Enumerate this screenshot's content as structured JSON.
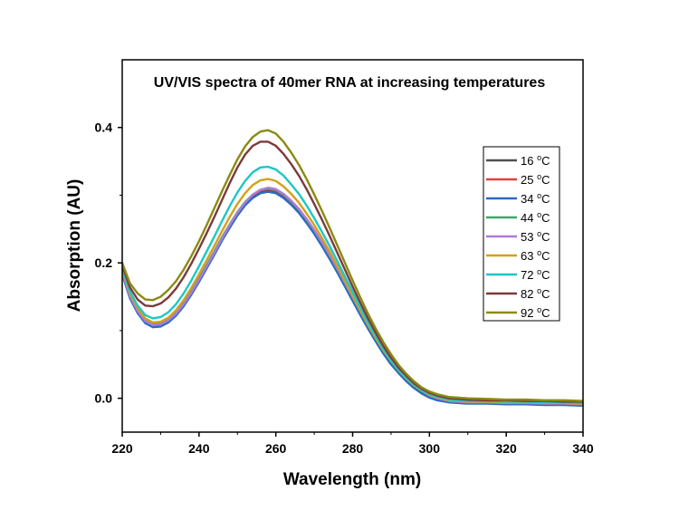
{
  "chart_data": {
    "type": "line",
    "title": "UV/VIS spectra of 40mer RNA at increasing temperatures",
    "xlabel": "Wavelength (nm)",
    "ylabel": "Absorption (AU)",
    "xlim": [
      220,
      340
    ],
    "ylim": [
      -0.05,
      0.5
    ],
    "xticks": [
      220,
      240,
      260,
      280,
      300,
      320,
      340
    ],
    "xtick_labels": [
      "220",
      "240",
      "260",
      "280",
      "300",
      "320",
      "340"
    ],
    "yticks": [
      0.0,
      0.2,
      0.4
    ],
    "ytick_labels": [
      "0.0",
      "0.2",
      "0.4"
    ],
    "legend_position": "right",
    "x": [
      220,
      222,
      224,
      226,
      228,
      230,
      232,
      234,
      236,
      238,
      240,
      242,
      244,
      246,
      248,
      250,
      252,
      254,
      256,
      258,
      260,
      262,
      264,
      266,
      268,
      270,
      272,
      274,
      276,
      278,
      280,
      282,
      284,
      286,
      288,
      290,
      292,
      294,
      296,
      298,
      300,
      302,
      305,
      310,
      315,
      320,
      325,
      330,
      335,
      340
    ],
    "series": [
      {
        "name": "16 °C",
        "label_main": "16 ",
        "label_sup": "o",
        "label_unit": "C",
        "color": "#505050",
        "values": [
          0.185,
          0.15,
          0.128,
          0.113,
          0.107,
          0.108,
          0.114,
          0.124,
          0.138,
          0.155,
          0.174,
          0.194,
          0.214,
          0.235,
          0.254,
          0.272,
          0.287,
          0.298,
          0.305,
          0.307,
          0.305,
          0.298,
          0.288,
          0.276,
          0.261,
          0.245,
          0.227,
          0.208,
          0.188,
          0.167,
          0.146,
          0.125,
          0.105,
          0.086,
          0.068,
          0.052,
          0.039,
          0.027,
          0.017,
          0.009,
          0.003,
          -0.001,
          -0.004,
          -0.006,
          -0.006,
          -0.006,
          -0.007,
          -0.007,
          -0.008,
          -0.008
        ]
      },
      {
        "name": "25 °C",
        "label_main": "25 ",
        "label_sup": "o",
        "label_unit": "C",
        "color": "#e04040",
        "values": [
          0.187,
          0.152,
          0.13,
          0.115,
          0.109,
          0.11,
          0.116,
          0.126,
          0.14,
          0.157,
          0.176,
          0.196,
          0.216,
          0.237,
          0.256,
          0.274,
          0.289,
          0.3,
          0.307,
          0.309,
          0.307,
          0.3,
          0.29,
          0.278,
          0.263,
          0.247,
          0.229,
          0.21,
          0.19,
          0.169,
          0.148,
          0.127,
          0.107,
          0.088,
          0.07,
          0.054,
          0.041,
          0.029,
          0.019,
          0.011,
          0.005,
          0.001,
          -0.003,
          -0.005,
          -0.005,
          -0.006,
          -0.006,
          -0.007,
          -0.007,
          -0.008
        ]
      },
      {
        "name": "34 °C",
        "label_main": "34 ",
        "label_sup": "o",
        "label_unit": "C",
        "color": "#2a6bc1",
        "values": [
          0.183,
          0.148,
          0.126,
          0.111,
          0.105,
          0.106,
          0.112,
          0.122,
          0.136,
          0.153,
          0.172,
          0.192,
          0.212,
          0.233,
          0.252,
          0.27,
          0.285,
          0.296,
          0.303,
          0.305,
          0.303,
          0.296,
          0.286,
          0.274,
          0.259,
          0.243,
          0.225,
          0.206,
          0.186,
          0.165,
          0.144,
          0.123,
          0.103,
          0.084,
          0.066,
          0.05,
          0.037,
          0.025,
          0.015,
          0.007,
          0.001,
          -0.003,
          -0.006,
          -0.008,
          -0.008,
          -0.009,
          -0.009,
          -0.01,
          -0.01,
          -0.011
        ]
      },
      {
        "name": "44 °C",
        "label_main": "44 ",
        "label_sup": "o",
        "label_unit": "C",
        "color": "#3aaa6a",
        "values": [
          0.188,
          0.153,
          0.131,
          0.116,
          0.11,
          0.111,
          0.117,
          0.127,
          0.141,
          0.158,
          0.177,
          0.197,
          0.217,
          0.238,
          0.257,
          0.275,
          0.29,
          0.301,
          0.308,
          0.31,
          0.308,
          0.301,
          0.291,
          0.279,
          0.264,
          0.248,
          0.23,
          0.211,
          0.191,
          0.17,
          0.149,
          0.128,
          0.108,
          0.089,
          0.071,
          0.055,
          0.042,
          0.03,
          0.02,
          0.012,
          0.006,
          0.002,
          -0.002,
          -0.004,
          -0.005,
          -0.005,
          -0.006,
          -0.006,
          -0.007,
          -0.007
        ]
      },
      {
        "name": "53 °C",
        "label_main": "53 ",
        "label_sup": "o",
        "label_unit": "C",
        "color": "#b07ad6",
        "values": [
          0.186,
          0.151,
          0.129,
          0.114,
          0.108,
          0.109,
          0.115,
          0.125,
          0.139,
          0.156,
          0.175,
          0.195,
          0.215,
          0.236,
          0.256,
          0.274,
          0.289,
          0.301,
          0.308,
          0.311,
          0.309,
          0.302,
          0.292,
          0.28,
          0.265,
          0.249,
          0.231,
          0.212,
          0.192,
          0.171,
          0.15,
          0.129,
          0.108,
          0.089,
          0.071,
          0.055,
          0.041,
          0.029,
          0.019,
          0.011,
          0.004,
          0.0,
          -0.004,
          -0.006,
          -0.006,
          -0.007,
          -0.007,
          -0.008,
          -0.008,
          -0.009
        ]
      },
      {
        "name": "63 °C",
        "label_main": "63 ",
        "label_sup": "o",
        "label_unit": "C",
        "color": "#d4a017",
        "values": [
          0.19,
          0.155,
          0.133,
          0.118,
          0.112,
          0.113,
          0.119,
          0.13,
          0.145,
          0.163,
          0.183,
          0.204,
          0.225,
          0.247,
          0.268,
          0.287,
          0.303,
          0.315,
          0.322,
          0.324,
          0.321,
          0.313,
          0.302,
          0.289,
          0.273,
          0.256,
          0.237,
          0.217,
          0.196,
          0.174,
          0.152,
          0.13,
          0.109,
          0.089,
          0.071,
          0.055,
          0.041,
          0.029,
          0.019,
          0.011,
          0.005,
          0.001,
          -0.003,
          -0.005,
          -0.005,
          -0.006,
          -0.006,
          -0.007,
          -0.007,
          -0.008
        ]
      },
      {
        "name": "72 °C",
        "label_main": "72 ",
        "label_sup": "o",
        "label_unit": "C",
        "color": "#1cc7c7",
        "values": [
          0.192,
          0.158,
          0.137,
          0.123,
          0.118,
          0.12,
          0.127,
          0.139,
          0.155,
          0.174,
          0.195,
          0.217,
          0.239,
          0.262,
          0.284,
          0.304,
          0.321,
          0.334,
          0.341,
          0.342,
          0.338,
          0.329,
          0.316,
          0.302,
          0.285,
          0.266,
          0.246,
          0.225,
          0.203,
          0.18,
          0.157,
          0.134,
          0.112,
          0.092,
          0.073,
          0.056,
          0.042,
          0.03,
          0.02,
          0.012,
          0.006,
          0.002,
          -0.002,
          -0.004,
          -0.004,
          -0.005,
          -0.005,
          -0.006,
          -0.006,
          -0.007
        ]
      },
      {
        "name": "82 °C",
        "label_main": "82 ",
        "label_sup": "o",
        "label_unit": "C",
        "color": "#7b3b3b",
        "values": [
          0.196,
          0.164,
          0.146,
          0.137,
          0.136,
          0.14,
          0.149,
          0.162,
          0.179,
          0.199,
          0.221,
          0.244,
          0.268,
          0.293,
          0.318,
          0.341,
          0.36,
          0.373,
          0.379,
          0.379,
          0.373,
          0.361,
          0.346,
          0.329,
          0.309,
          0.287,
          0.264,
          0.24,
          0.215,
          0.19,
          0.165,
          0.141,
          0.118,
          0.097,
          0.077,
          0.06,
          0.045,
          0.033,
          0.022,
          0.014,
          0.008,
          0.004,
          0.0,
          -0.002,
          -0.003,
          -0.003,
          -0.004,
          -0.004,
          -0.005,
          -0.005
        ]
      },
      {
        "name": "92 °C",
        "label_main": "92 ",
        "label_sup": "o",
        "label_unit": "C",
        "color": "#8b8a12",
        "values": [
          0.2,
          0.17,
          0.155,
          0.146,
          0.145,
          0.15,
          0.16,
          0.173,
          0.19,
          0.21,
          0.232,
          0.256,
          0.281,
          0.306,
          0.33,
          0.353,
          0.372,
          0.386,
          0.394,
          0.396,
          0.391,
          0.379,
          0.363,
          0.345,
          0.324,
          0.301,
          0.277,
          0.252,
          0.226,
          0.2,
          0.174,
          0.149,
          0.125,
          0.103,
          0.083,
          0.065,
          0.049,
          0.036,
          0.025,
          0.016,
          0.01,
          0.006,
          0.002,
          0.0,
          -0.001,
          -0.002,
          -0.002,
          -0.003,
          -0.003,
          -0.004
        ]
      }
    ]
  }
}
